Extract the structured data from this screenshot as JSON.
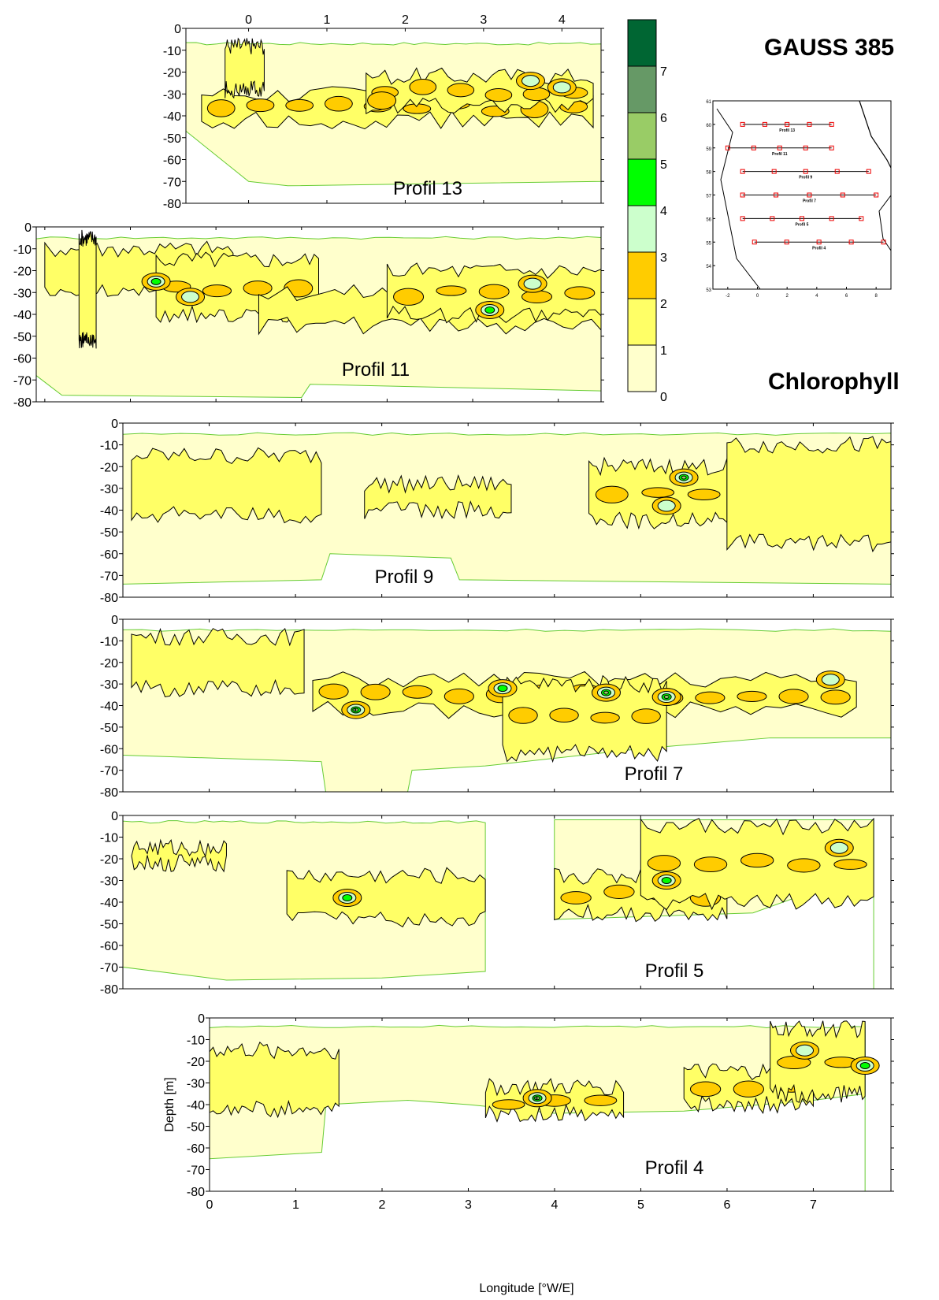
{
  "title": "GAUSS 385",
  "variable": "Chlorophyll",
  "colorbar": {
    "ticks": [
      "0",
      "1",
      "2",
      "3",
      "4",
      "5",
      "6",
      "7"
    ],
    "colors": [
      "#ffffcc",
      "#ffff66",
      "#ffcc00",
      "#ccffcc",
      "#00ff00",
      "#99cc66",
      "#669966",
      "#006633"
    ]
  },
  "fill_colors": {
    "level0": "#ffffcc",
    "level1": "#ffff66",
    "level2": "#ffcc00",
    "level3": "#ccffcc",
    "level4": "#00ff00",
    "level5": "#99cc66",
    "level6": "#669966",
    "boundary": "#66cc33"
  },
  "map_inset": {
    "lat_ticks": [
      "61",
      "60",
      "59",
      "58",
      "57",
      "56",
      "55",
      "54",
      "53"
    ],
    "lon_ticks": [
      "-2",
      "0",
      "2",
      "4",
      "6",
      "8"
    ],
    "profile_labels": [
      "Profil 13",
      "Profil 11",
      "Profil 9",
      "Profil 7",
      "Profil 5",
      "Profil 4"
    ]
  },
  "chart_data": [
    {
      "type": "heatmap",
      "name": "Profil 13",
      "x_ticks": [
        "0",
        "1",
        "2",
        "3",
        "4"
      ],
      "y_ticks": [
        "0",
        "-10",
        "-20",
        "-30",
        "-40",
        "-50",
        "-60",
        "-70",
        "-80"
      ],
      "xlim": [
        -0.8,
        4.5
      ],
      "ylim": [
        -80,
        0
      ],
      "x_axis_position": "top",
      "bands": [
        {
          "level": "1-2",
          "depth_range": [
            -45,
            -25
          ]
        },
        {
          "level": "2-3",
          "depth_range": [
            -35,
            -25
          ]
        }
      ]
    },
    {
      "type": "heatmap",
      "name": "Profil 11",
      "x_ticks": [],
      "y_ticks": [
        "0",
        "-10",
        "-20",
        "-30",
        "-40",
        "-50",
        "-60",
        "-70",
        "-80"
      ],
      "xlim": [
        -2.1,
        4.5
      ],
      "ylim": [
        -80,
        0
      ],
      "bands": [
        {
          "level": "1-2",
          "depth_range": [
            -45,
            -15
          ]
        },
        {
          "level": "2-3",
          "depth_range": [
            -38,
            -22
          ]
        }
      ]
    },
    {
      "type": "heatmap",
      "name": "Profil 9",
      "x_ticks": [],
      "y_ticks": [
        "0",
        "-10",
        "-20",
        "-30",
        "-40",
        "-50",
        "-60",
        "-70",
        "-80"
      ],
      "xlim": [
        -1.0,
        7.9
      ],
      "ylim": [
        -80,
        0
      ],
      "bands": [
        {
          "level": "1-2",
          "depth_range": [
            -45,
            -15
          ]
        },
        {
          "level": "2-3",
          "depth_range": [
            -40,
            -25
          ]
        },
        {
          "level": "3-5",
          "depth_range": [
            -30,
            -20
          ]
        }
      ]
    },
    {
      "type": "heatmap",
      "name": "Profil 7",
      "x_ticks": [],
      "y_ticks": [
        "0",
        "-10",
        "-20",
        "-30",
        "-40",
        "-50",
        "-60",
        "-70",
        "-80"
      ],
      "xlim": [
        -1.0,
        7.9
      ],
      "ylim": [
        -80,
        0
      ],
      "bands": [
        {
          "level": "1-2",
          "depth_range": [
            -60,
            -15
          ]
        },
        {
          "level": "2-3",
          "depth_range": [
            -60,
            -30
          ]
        },
        {
          "level": "3-6",
          "depth_range": [
            -45,
            -30
          ]
        }
      ]
    },
    {
      "type": "heatmap",
      "name": "Profil 5",
      "x_ticks": [],
      "y_ticks": [
        "0",
        "-10",
        "-20",
        "-30",
        "-40",
        "-50",
        "-60",
        "-70",
        "-80"
      ],
      "xlim": [
        -1.0,
        7.9
      ],
      "ylim": [
        -80,
        0
      ],
      "bands": [
        {
          "level": "1-2",
          "depth_range": [
            -48,
            -5
          ]
        },
        {
          "level": "2-3",
          "depth_range": [
            -40,
            -5
          ]
        },
        {
          "level": "3-4",
          "depth_range": [
            -38,
            -10
          ]
        }
      ]
    },
    {
      "type": "heatmap",
      "name": "Profil 4",
      "x_ticks": [
        "0",
        "1",
        "2",
        "3",
        "4",
        "5",
        "6",
        "7"
      ],
      "y_ticks": [
        "0",
        "-10",
        "-20",
        "-30",
        "-40",
        "-50",
        "-60",
        "-70",
        "-80"
      ],
      "xlim": [
        0,
        7.9
      ],
      "ylim": [
        -80,
        0
      ],
      "xlabel": "Longitude [°W/E]",
      "ylabel": "Depth [m]",
      "bands": [
        {
          "level": "1-2",
          "depth_range": [
            -45,
            -15
          ]
        },
        {
          "level": "2-3",
          "depth_range": [
            -45,
            -5
          ]
        },
        {
          "level": "3-6",
          "depth_range": [
            -45,
            -5
          ]
        }
      ]
    }
  ]
}
